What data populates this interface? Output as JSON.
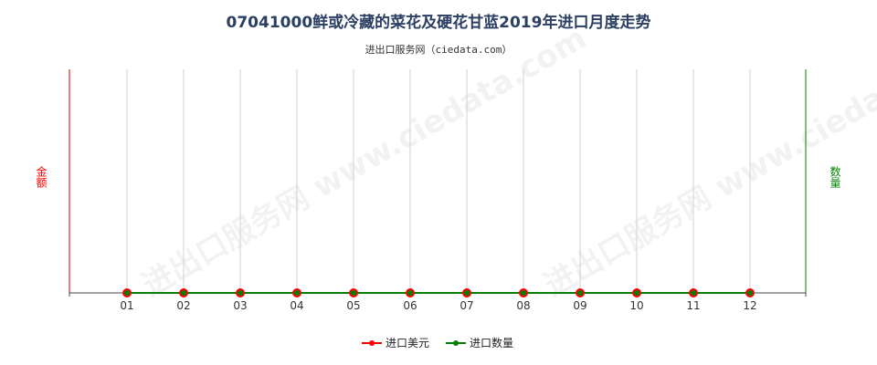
{
  "chart_data": {
    "type": "line",
    "title": "07041000鲜或冷藏的菜花及硬花甘蓝2019年进口月度走势",
    "subtitle": "进出口服务网（ciedata.com）",
    "watermark": "进出口服务网 www.ciedata.com",
    "ylabel_left": "金额",
    "ylabel_right": "数量",
    "categories": [
      "01",
      "02",
      "03",
      "04",
      "05",
      "06",
      "07",
      "08",
      "09",
      "10",
      "11",
      "12"
    ],
    "series": [
      {
        "name": "进口美元",
        "color": "#ff0000",
        "values": [
          0,
          0,
          0,
          0,
          0,
          0,
          0,
          0,
          0,
          0,
          0,
          0
        ]
      },
      {
        "name": "进口数量",
        "color": "#008000",
        "values": [
          0,
          0,
          0,
          0,
          0,
          0,
          0,
          0,
          0,
          0,
          0,
          0
        ]
      }
    ],
    "left_axis_color": "#cc0000",
    "right_axis_color": "#008000",
    "grid": true,
    "legend_position": "bottom-center"
  }
}
